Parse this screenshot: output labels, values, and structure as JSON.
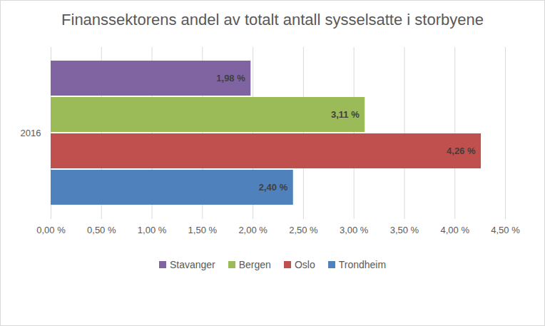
{
  "chart_data": {
    "type": "bar",
    "orientation": "horizontal",
    "title": "Finanssektorens andel av totalt antall sysselsatte i storbyene",
    "categories": [
      "2016"
    ],
    "series": [
      {
        "name": "Stavanger",
        "color": "#8064A2",
        "values": [
          1.98
        ],
        "value_labels": [
          "1,98 %"
        ]
      },
      {
        "name": "Bergen",
        "color": "#9BBB59",
        "values": [
          3.11
        ],
        "value_labels": [
          "3,11 %"
        ]
      },
      {
        "name": "Oslo",
        "color": "#C0504D",
        "values": [
          4.26
        ],
        "value_labels": [
          "4,26 %"
        ]
      },
      {
        "name": "Trondheim",
        "color": "#4F81BD",
        "values": [
          2.4
        ],
        "value_labels": [
          "2,40 %"
        ]
      }
    ],
    "xlim": [
      0,
      4.5
    ],
    "xticks": [
      {
        "value": 0,
        "label": "0,00 %"
      },
      {
        "value": 0.5,
        "label": "0,50 %"
      },
      {
        "value": 1,
        "label": "1,00 %"
      },
      {
        "value": 1.5,
        "label": "1,50 %"
      },
      {
        "value": 2,
        "label": "2,00 %"
      },
      {
        "value": 2.5,
        "label": "2,50 %"
      },
      {
        "value": 3,
        "label": "3,00 %"
      },
      {
        "value": 3.5,
        "label": "3,50 %"
      },
      {
        "value": 4,
        "label": "4,00 %"
      },
      {
        "value": 4.5,
        "label": "4,50 %"
      }
    ],
    "grid": true,
    "data_labels": true,
    "legend": "bottom"
  }
}
